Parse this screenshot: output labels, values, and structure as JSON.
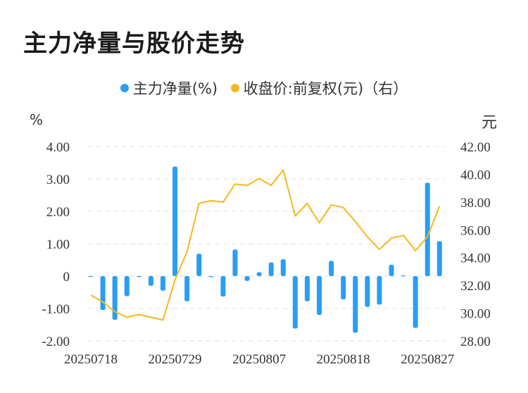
{
  "page_title": "主力净量与股价走势",
  "chart_data": {
    "type": "bar+line",
    "legend": [
      {
        "label": "主力净量(%)",
        "color": "#2a9df4"
      },
      {
        "label": "收盘价:前复权(元)（右）",
        "color": "#f5b81c"
      }
    ],
    "left_unit": "%",
    "right_unit": "元",
    "left_ticks": [
      "4.00",
      "3.00",
      "2.00",
      "1.00",
      "0",
      "-1.00",
      "-2.00"
    ],
    "right_ticks": [
      "42.00",
      "40.00",
      "38.00",
      "36.00",
      "34.00",
      "32.00",
      "30.00",
      "28.00"
    ],
    "x_tick_labels": [
      "20250718",
      "20250729",
      "20250807",
      "20250818",
      "20250827"
    ],
    "left_ylim": [
      -2,
      4
    ],
    "right_ylim": [
      28,
      42
    ],
    "series": [
      {
        "name": "主力净量(%)",
        "type": "bar",
        "color": "#2a9df4",
        "values": [
          -0.02,
          -1.05,
          -1.35,
          -0.62,
          -0.02,
          -0.3,
          -0.45,
          3.38,
          -0.78,
          0.69,
          -0.03,
          -0.63,
          0.82,
          -0.15,
          0.12,
          0.42,
          0.52,
          -1.62,
          -0.78,
          -1.2,
          0.47,
          -0.72,
          -1.75,
          -0.95,
          -0.88,
          0.35,
          0.02,
          -1.6,
          2.88,
          1.08
        ]
      },
      {
        "name": "收盘价:前复权(元)（右）",
        "type": "line",
        "color": "#f5b81c",
        "values": [
          31.3,
          30.8,
          30.1,
          29.7,
          29.9,
          29.7,
          29.5,
          32.4,
          34.4,
          37.9,
          38.1,
          38.0,
          39.3,
          39.2,
          39.7,
          39.2,
          40.3,
          37.0,
          37.9,
          36.5,
          37.8,
          37.6,
          36.6,
          35.5,
          34.6,
          35.4,
          35.6,
          34.5,
          35.5,
          37.7
        ]
      }
    ]
  }
}
